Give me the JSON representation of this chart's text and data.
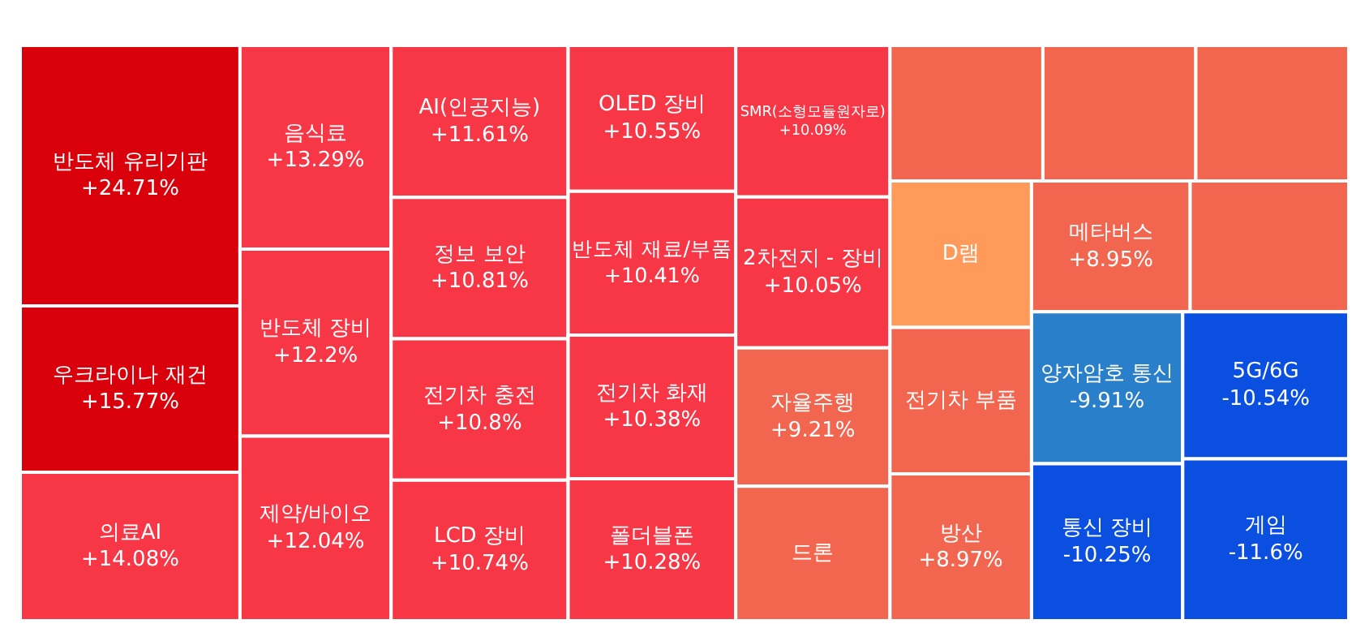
{
  "chart_data": {
    "type": "other",
    "categories": [
      "반도체 유리기판",
      "우크라이나 재건",
      "의료AI",
      "음식료",
      "반도체 장비",
      "제약/바이오",
      "AI(인공지능)",
      "정보 보안",
      "전기차 충전",
      "LCD 장비",
      "OLED 장비",
      "반도체 재료/부품",
      "전기차 화재",
      "폴더블폰",
      "SMR(소형모듈원자로)",
      "2차전지 - 장비",
      "자율주행",
      "드론",
      null,
      null,
      null,
      "D램",
      "전기차 부품",
      "방산",
      "메타버스",
      null,
      "양자암호 통신",
      "통신 장비",
      "5G/6G",
      "게임"
    ],
    "values": [
      24.71,
      15.77,
      14.08,
      13.29,
      12.2,
      12.04,
      11.61,
      10.81,
      10.8,
      10.74,
      10.55,
      10.41,
      10.38,
      10.28,
      10.09,
      10.05,
      9.21,
      null,
      null,
      null,
      null,
      null,
      null,
      8.97,
      8.95,
      null,
      -9.91,
      -10.25,
      -10.54,
      -11.6
    ],
    "value_labels": [
      "+24.71%",
      "+15.77%",
      "+14.08%",
      "+13.29%",
      "+12.2%",
      "+12.04%",
      "+11.61%",
      "+10.81%",
      "+10.8%",
      "+10.74%",
      "+10.55%",
      "+10.41%",
      "+10.38%",
      "+10.28%",
      "+10.09%",
      "+10.05%",
      "+9.21%",
      null,
      null,
      null,
      null,
      null,
      null,
      "+8.97%",
      "+8.95%",
      null,
      "-9.91%",
      "-10.25%",
      "-10.54%",
      "-11.6%"
    ],
    "colors": [
      "#d9000b",
      "#d9000b",
      "#f73646",
      "#f73646",
      "#f73646",
      "#f73646",
      "#f73646",
      "#f73646",
      "#f73646",
      "#f73646",
      "#f73646",
      "#f73646",
      "#f73646",
      "#f73646",
      "#f73646",
      "#f73646",
      "#f2654e",
      "#f2654e",
      "#f2654e",
      "#f2654e",
      "#f2654e",
      "#ff9a5a",
      "#f2654e",
      "#f2654e",
      "#f2654e",
      "#f2654e",
      "#2a7fcb",
      "#0a4fe0",
      "#0a4fe0",
      "#0a4fe0"
    ]
  }
}
